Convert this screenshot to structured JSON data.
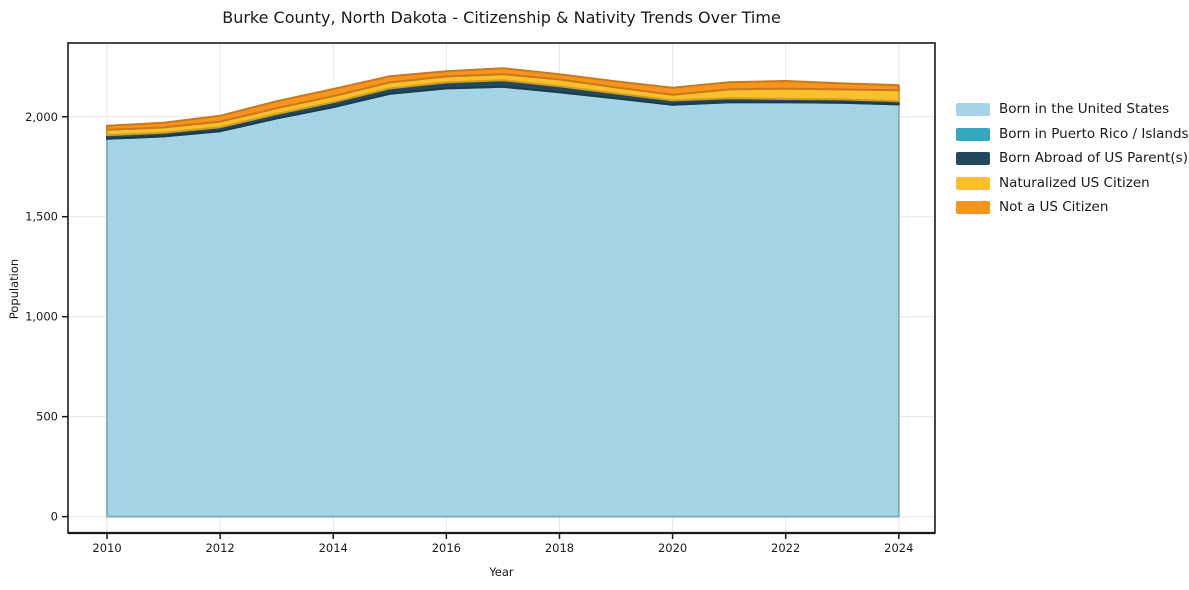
{
  "title": "Burke County, North Dakota - Citizenship & Nativity Trends Over Time",
  "colors": {
    "background": "#ffffff",
    "text": "#1a1a1a",
    "grid": "#e7e7e7",
    "spine": "#1a1a1a"
  },
  "chart_data": {
    "type": "area",
    "stacked": true,
    "title": "Burke County, North Dakota - Citizenship & Nativity Trends Over Time",
    "xlabel": "Year",
    "ylabel": "Population",
    "grid": true,
    "legend_position": "right-outside",
    "x": [
      2010,
      2011,
      2012,
      2013,
      2014,
      2015,
      2016,
      2017,
      2018,
      2019,
      2020,
      2021,
      2022,
      2023,
      2024
    ],
    "series": [
      {
        "name": "Born in the United States",
        "color": "#A5D3E8",
        "values": [
          1890,
          1902,
          1928,
          1992,
          2048,
          2115,
          2142,
          2150,
          2123,
          2092,
          2060,
          2073,
          2073,
          2070,
          2062
        ]
      },
      {
        "name": "Born in Puerto Rico / Islands",
        "color": "#35A7BF",
        "values": [
          0,
          0,
          0,
          0,
          0,
          0,
          0,
          0,
          0,
          0,
          0,
          0,
          0,
          0,
          0
        ]
      },
      {
        "name": "Born Abroad of US Parent(s)",
        "color": "#21485C",
        "values": [
          18,
          18,
          20,
          22,
          25,
          27,
          30,
          33,
          30,
          25,
          22,
          20,
          16,
          17,
          16
        ]
      },
      {
        "name": "Naturalized US Citizen",
        "color": "#FBC02D",
        "values": [
          27,
          27,
          28,
          29,
          30,
          30,
          30,
          30,
          34,
          30,
          28,
          44,
          52,
          50,
          55
        ]
      },
      {
        "name": "Not a US Citizen",
        "color": "#F7941E",
        "values": [
          20,
          23,
          29,
          35,
          36,
          31,
          26,
          30,
          26,
          30,
          35,
          36,
          38,
          30,
          25
        ]
      }
    ],
    "x_ticks": [
      {
        "v": 2010,
        "label": "2010"
      },
      {
        "v": 2012,
        "label": "2012"
      },
      {
        "v": 2014,
        "label": "2014"
      },
      {
        "v": 2016,
        "label": "2016"
      },
      {
        "v": 2018,
        "label": "2018"
      },
      {
        "v": 2020,
        "label": "2020"
      },
      {
        "v": 2022,
        "label": "2022"
      },
      {
        "v": 2024,
        "label": "2024"
      }
    ],
    "y_ticks": [
      {
        "v": 0,
        "label": "0"
      },
      {
        "v": 500,
        "label": "500"
      },
      {
        "v": 1000,
        "label": "1,000"
      },
      {
        "v": 1500,
        "label": "1,500"
      },
      {
        "v": 2000,
        "label": "2,000"
      }
    ],
    "xlim": [
      2009.31,
      2024.64
    ],
    "ylim": [
      -82,
      2369
    ]
  }
}
